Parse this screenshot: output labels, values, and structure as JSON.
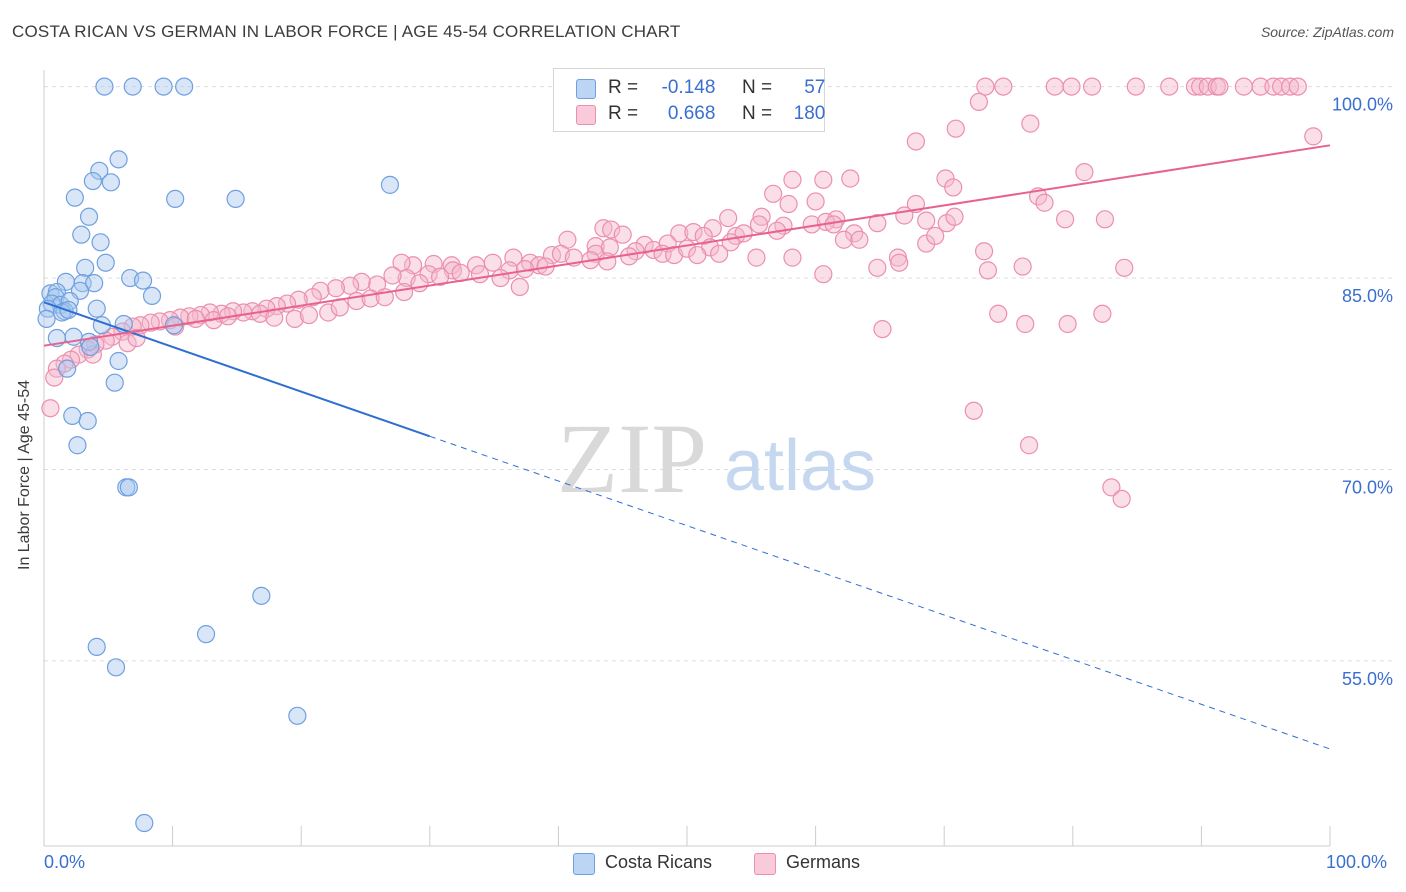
{
  "header": {
    "title": "COSTA RICAN VS GERMAN IN LABOR FORCE | AGE 45-54 CORRELATION CHART",
    "source": "Source: ZipAtlas.com"
  },
  "watermark": {
    "zip": "ZIP",
    "atlas": "atlas"
  },
  "legend": {
    "r_label": "R =",
    "n_label": "N =",
    "rows": [
      {
        "r": "-0.148",
        "n": "57"
      },
      {
        "r": "0.668",
        "n": "180"
      }
    ],
    "bottom": [
      "Costa Ricans",
      "Germans"
    ]
  },
  "axes": {
    "y_label": "In Labor Force | Age 45-54",
    "x_min_label": "0.0%",
    "x_max_label": "100.0%",
    "y_tick_labels": [
      "100.0%",
      "85.0%",
      "70.0%",
      "55.0%"
    ]
  },
  "colors": {
    "blue_fill": "#a8c8f0",
    "blue_stroke": "#6fa0e0",
    "blue_line": "#2f6fd0",
    "pink_fill": "#f5b8cc",
    "pink_stroke": "#ec8fae",
    "pink_line": "#e8628e",
    "axis_text": "#3a6fd0",
    "grid": "#dcdcdc"
  },
  "chart_data": {
    "type": "scatter",
    "xlim": [
      0,
      100
    ],
    "ylim": [
      40.5,
      101.3
    ],
    "y_ticks": [
      100,
      85,
      70,
      55
    ],
    "grid": true,
    "series": [
      {
        "name": "Costa Ricans",
        "r": -0.148,
        "n": 57,
        "trend": {
          "x0": 0,
          "y0": 83.1,
          "x1": 30,
          "y1": 72.6,
          "dash_to_x": 100,
          "dash_to_y": 48.1
        },
        "points": [
          [
            4.7,
            100
          ],
          [
            6.9,
            100
          ],
          [
            9.3,
            100
          ],
          [
            10.9,
            100
          ],
          [
            5.8,
            94.3
          ],
          [
            4.3,
            93.4
          ],
          [
            3.8,
            92.6
          ],
          [
            5.2,
            92.5
          ],
          [
            26.9,
            92.3
          ],
          [
            2.4,
            91.3
          ],
          [
            10.2,
            91.2
          ],
          [
            14.9,
            91.2
          ],
          [
            3.5,
            89.8
          ],
          [
            2.9,
            88.4
          ],
          [
            4.4,
            87.8
          ],
          [
            4.8,
            86.2
          ],
          [
            3.2,
            85.8
          ],
          [
            6.7,
            85.0
          ],
          [
            7.7,
            84.8
          ],
          [
            1.7,
            84.7
          ],
          [
            3.0,
            84.6
          ],
          [
            3.9,
            84.6
          ],
          [
            2.8,
            84.0
          ],
          [
            0.5,
            83.8
          ],
          [
            1.0,
            83.9
          ],
          [
            0.9,
            83.5
          ],
          [
            8.4,
            83.6
          ],
          [
            0.6,
            83.0
          ],
          [
            1.3,
            82.9
          ],
          [
            2.0,
            83.2
          ],
          [
            0.3,
            82.6
          ],
          [
            1.6,
            82.4
          ],
          [
            4.1,
            82.6
          ],
          [
            1.4,
            82.3
          ],
          [
            1.9,
            82.5
          ],
          [
            0.2,
            81.8
          ],
          [
            6.2,
            81.4
          ],
          [
            4.5,
            81.3
          ],
          [
            10.1,
            81.3
          ],
          [
            1.0,
            80.3
          ],
          [
            3.5,
            80.0
          ],
          [
            2.3,
            80.4
          ],
          [
            3.6,
            79.6
          ],
          [
            5.8,
            78.5
          ],
          [
            1.8,
            77.9
          ],
          [
            5.5,
            76.8
          ],
          [
            2.2,
            74.2
          ],
          [
            3.4,
            73.8
          ],
          [
            2.6,
            71.9
          ],
          [
            6.4,
            68.6
          ],
          [
            6.6,
            68.6
          ],
          [
            16.9,
            60.1
          ],
          [
            12.6,
            57.1
          ],
          [
            4.1,
            56.1
          ],
          [
            5.6,
            54.5
          ],
          [
            19.7,
            50.7
          ],
          [
            7.8,
            42.3
          ]
        ]
      },
      {
        "name": "Germans",
        "r": 0.668,
        "n": 180,
        "trend": {
          "x0": 0,
          "y0": 79.7,
          "x1": 100,
          "y1": 95.4
        },
        "points": [
          [
            73.2,
            100
          ],
          [
            74.6,
            100
          ],
          [
            78.6,
            100
          ],
          [
            79.9,
            100
          ],
          [
            81.5,
            100
          ],
          [
            84.9,
            100
          ],
          [
            87.5,
            100
          ],
          [
            89.5,
            100
          ],
          [
            89.9,
            100
          ],
          [
            90.5,
            100
          ],
          [
            91.2,
            100
          ],
          [
            91.4,
            100
          ],
          [
            93.3,
            100
          ],
          [
            94.6,
            100
          ],
          [
            95.6,
            100
          ],
          [
            96.2,
            100
          ],
          [
            96.9,
            100
          ],
          [
            97.5,
            100
          ],
          [
            72.7,
            98.8
          ],
          [
            70.9,
            96.7
          ],
          [
            76.7,
            97.1
          ],
          [
            67.8,
            95.7
          ],
          [
            98.7,
            96.1
          ],
          [
            62.7,
            92.8
          ],
          [
            58.2,
            92.7
          ],
          [
            60.6,
            92.7
          ],
          [
            70.1,
            92.8
          ],
          [
            80.9,
            93.3
          ],
          [
            56.7,
            91.6
          ],
          [
            70.7,
            92.1
          ],
          [
            57.9,
            90.8
          ],
          [
            60.0,
            91.0
          ],
          [
            77.3,
            91.4
          ],
          [
            77.8,
            90.9
          ],
          [
            67.8,
            90.8
          ],
          [
            53.2,
            89.7
          ],
          [
            55.8,
            89.8
          ],
          [
            61.6,
            89.6
          ],
          [
            64.8,
            89.3
          ],
          [
            66.9,
            89.9
          ],
          [
            68.6,
            89.5
          ],
          [
            70.2,
            89.3
          ],
          [
            70.8,
            89.8
          ],
          [
            79.4,
            89.6
          ],
          [
            82.5,
            89.6
          ],
          [
            55.6,
            89.2
          ],
          [
            57.5,
            89.1
          ],
          [
            59.7,
            89.2
          ],
          [
            60.8,
            89.4
          ],
          [
            61.4,
            89.2
          ],
          [
            52.0,
            88.9
          ],
          [
            53.8,
            88.3
          ],
          [
            54.4,
            88.5
          ],
          [
            43.5,
            88.9
          ],
          [
            44.1,
            88.8
          ],
          [
            45.0,
            88.4
          ],
          [
            49.4,
            88.5
          ],
          [
            50.5,
            88.6
          ],
          [
            51.3,
            88.3
          ],
          [
            57.0,
            88.7
          ],
          [
            63.0,
            88.5
          ],
          [
            40.7,
            88.0
          ],
          [
            42.9,
            87.5
          ],
          [
            46.7,
            87.6
          ],
          [
            47.4,
            87.2
          ],
          [
            48.5,
            87.7
          ],
          [
            51.8,
            87.4
          ],
          [
            53.4,
            87.8
          ],
          [
            62.2,
            88.0
          ],
          [
            63.4,
            88.0
          ],
          [
            68.6,
            87.7
          ],
          [
            69.3,
            88.3
          ],
          [
            73.1,
            87.1
          ],
          [
            42.9,
            86.9
          ],
          [
            44.0,
            87.4
          ],
          [
            46.0,
            87.1
          ],
          [
            48.1,
            86.9
          ],
          [
            49.0,
            86.8
          ],
          [
            50.0,
            87.3
          ],
          [
            50.8,
            86.8
          ],
          [
            52.5,
            86.9
          ],
          [
            55.4,
            86.6
          ],
          [
            58.2,
            86.6
          ],
          [
            66.4,
            86.6
          ],
          [
            39.5,
            86.8
          ],
          [
            40.2,
            86.9
          ],
          [
            41.2,
            86.6
          ],
          [
            42.5,
            86.4
          ],
          [
            43.8,
            86.3
          ],
          [
            37.8,
            86.2
          ],
          [
            38.5,
            86.0
          ],
          [
            36.5,
            86.6
          ],
          [
            34.9,
            86.2
          ],
          [
            33.6,
            86.0
          ],
          [
            31.7,
            86.0
          ],
          [
            30.3,
            86.1
          ],
          [
            28.7,
            86.0
          ],
          [
            27.8,
            86.2
          ],
          [
            36.2,
            85.6
          ],
          [
            37.4,
            85.7
          ],
          [
            31.8,
            85.6
          ],
          [
            29.9,
            85.3
          ],
          [
            28.2,
            85.0
          ],
          [
            27.1,
            85.2
          ],
          [
            25.9,
            84.5
          ],
          [
            24.7,
            84.7
          ],
          [
            23.8,
            84.4
          ],
          [
            22.7,
            84.2
          ],
          [
            21.5,
            84.0
          ],
          [
            20.9,
            83.5
          ],
          [
            19.8,
            83.3
          ],
          [
            18.9,
            83.0
          ],
          [
            18.1,
            82.8
          ],
          [
            17.3,
            82.6
          ],
          [
            16.2,
            82.4
          ],
          [
            15.5,
            82.3
          ],
          [
            14.7,
            82.4
          ],
          [
            13.8,
            82.2
          ],
          [
            12.9,
            82.3
          ],
          [
            12.2,
            82.1
          ],
          [
            11.3,
            82.0
          ],
          [
            10.6,
            81.9
          ],
          [
            9.8,
            81.7
          ],
          [
            9.0,
            81.6
          ],
          [
            8.3,
            81.5
          ],
          [
            7.5,
            81.3
          ],
          [
            6.9,
            81.2
          ],
          [
            6.1,
            80.8
          ],
          [
            5.3,
            80.4
          ],
          [
            4.8,
            80.1
          ],
          [
            4.0,
            79.8
          ],
          [
            3.4,
            79.4
          ],
          [
            2.7,
            79.0
          ],
          [
            2.1,
            78.6
          ],
          [
            1.6,
            78.3
          ],
          [
            1.0,
            77.9
          ],
          [
            0.8,
            77.2
          ],
          [
            0.5,
            74.8
          ],
          [
            3.8,
            79.0
          ],
          [
            6.5,
            79.9
          ],
          [
            7.2,
            80.3
          ],
          [
            10.2,
            81.2
          ],
          [
            11.8,
            81.8
          ],
          [
            13.2,
            81.7
          ],
          [
            14.3,
            82.0
          ],
          [
            16.8,
            82.2
          ],
          [
            17.9,
            81.9
          ],
          [
            19.5,
            81.8
          ],
          [
            20.6,
            82.1
          ],
          [
            22.1,
            82.3
          ],
          [
            23.0,
            82.7
          ],
          [
            24.3,
            83.2
          ],
          [
            25.4,
            83.4
          ],
          [
            26.5,
            83.5
          ],
          [
            28.0,
            83.9
          ],
          [
            29.2,
            84.6
          ],
          [
            30.8,
            85.1
          ],
          [
            32.4,
            85.4
          ],
          [
            33.9,
            85.3
          ],
          [
            35.5,
            85.0
          ],
          [
            37.0,
            84.3
          ],
          [
            39.0,
            85.9
          ],
          [
            45.5,
            86.7
          ],
          [
            64.8,
            85.8
          ],
          [
            66.5,
            86.2
          ],
          [
            73.4,
            85.6
          ],
          [
            60.6,
            85.3
          ],
          [
            76.1,
            85.9
          ],
          [
            84.0,
            85.8
          ],
          [
            74.2,
            82.2
          ],
          [
            76.3,
            81.4
          ],
          [
            79.6,
            81.4
          ],
          [
            82.3,
            82.2
          ],
          [
            65.2,
            81.0
          ],
          [
            72.3,
            74.6
          ],
          [
            76.6,
            71.9
          ],
          [
            83.0,
            68.6
          ],
          [
            83.8,
            67.7
          ]
        ]
      }
    ]
  }
}
